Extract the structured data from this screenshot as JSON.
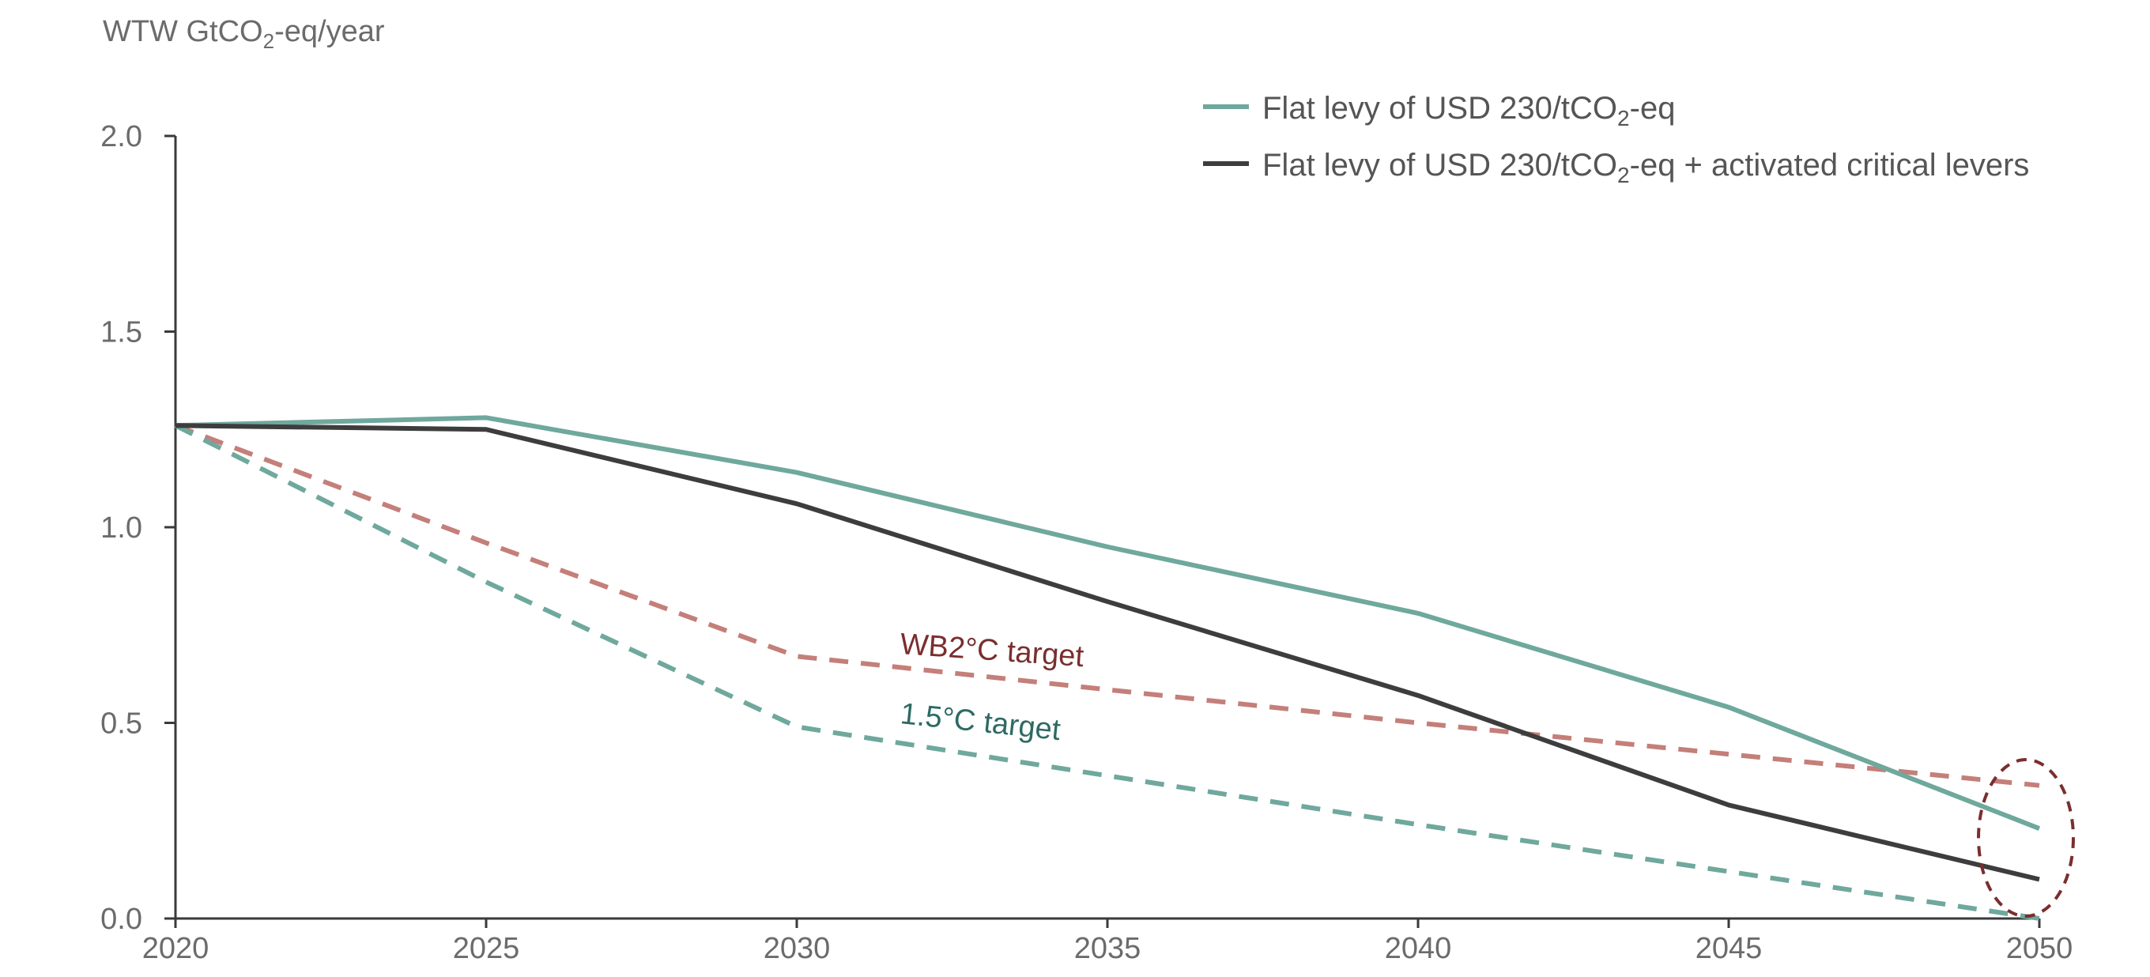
{
  "chart_data": {
    "type": "line",
    "ylabel": {
      "prefix": "WTW GtCO",
      "sub": "2",
      "suffix": "-eq/year"
    },
    "x": [
      2020,
      2025,
      2030,
      2035,
      2040,
      2045,
      2050
    ],
    "x_tick_labels": [
      "2020",
      "2025",
      "2030",
      "2035",
      "2040",
      "2045",
      "2050"
    ],
    "y_tick_labels": [
      "0.0",
      "0.5",
      "1.0",
      "1.5",
      "2.0"
    ],
    "xlim": [
      2020,
      2050
    ],
    "ylim": [
      0,
      2.0
    ],
    "grid": false,
    "legend_position": "top-right",
    "series": [
      {
        "key": "flat_levy",
        "name_parts": {
          "prefix": "Flat levy of USD 230/tCO",
          "sub": "2",
          "suffix": "-eq"
        },
        "color": "#6fa89d",
        "style": "solid",
        "values": [
          1.26,
          1.28,
          1.14,
          0.95,
          0.78,
          0.54,
          0.23
        ]
      },
      {
        "key": "flat_levy_levers",
        "name_parts": {
          "prefix": "Flat levy of USD 230/tCO",
          "sub": "2",
          "suffix": "-eq  + activated critical levers"
        },
        "color": "#3d3d3d",
        "style": "solid",
        "values": [
          1.26,
          1.25,
          1.06,
          0.81,
          0.57,
          0.29,
          0.1
        ]
      },
      {
        "key": "wb2",
        "color": "#c47f7a",
        "style": "dashed",
        "x": [
          2020,
          2025,
          2030,
          2040,
          2050
        ],
        "values": [
          1.26,
          0.96,
          0.67,
          0.5,
          0.34
        ]
      },
      {
        "key": "one_five",
        "color": "#6fa89d",
        "style": "dashed",
        "x": [
          2020,
          2025,
          2030,
          2040,
          2050
        ],
        "values": [
          1.26,
          0.86,
          0.49,
          0.24,
          0.0
        ]
      }
    ],
    "annotations": {
      "wb2_label": "WB2°C target",
      "wb2_color": "#7a2e2e",
      "one_five_label": "1.5°C target",
      "one_five_color": "#2e6a63",
      "highlight_ellipse_color": "#7a2e2e"
    }
  }
}
